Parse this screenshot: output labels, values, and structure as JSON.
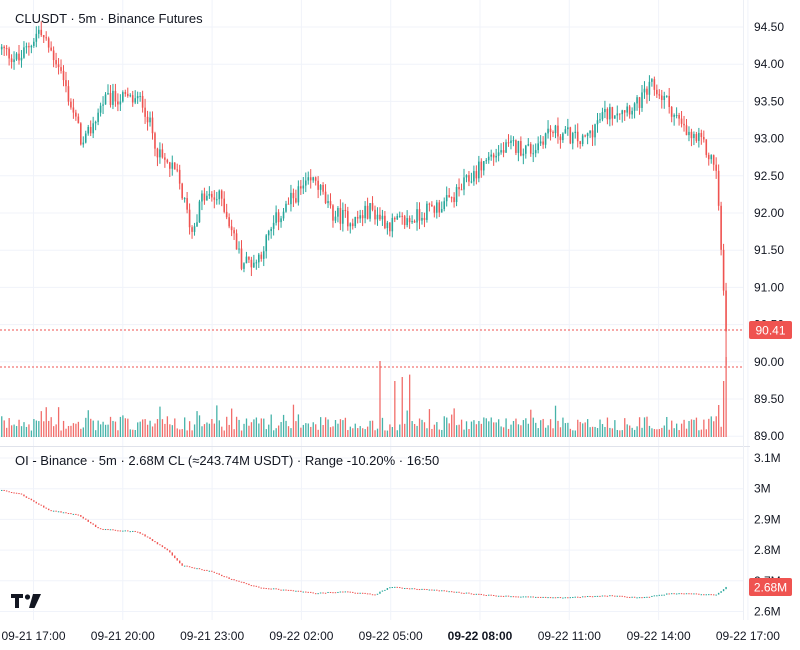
{
  "header": {
    "symbol_title": "CLUSDT · 5m · Binance Futures"
  },
  "oi_panel": {
    "title": "OI - Binance · 5m · 2.68M CL (≈243.74M USDT) · Range -10.20% · 16:50",
    "current_label": "2.68M",
    "y_ticks": [
      "3.1M",
      "3M",
      "2.9M",
      "2.8M",
      "2.7M",
      "2.6M"
    ]
  },
  "price_panel": {
    "current_price_label": "90.41",
    "y_ticks": [
      "94.50",
      "94.00",
      "93.50",
      "93.00",
      "92.50",
      "92.00",
      "91.50",
      "91.00",
      "90.50",
      "90.00",
      "89.50",
      "89.00"
    ]
  },
  "x_axis": {
    "labels": [
      "09-21 17:00",
      "09-21 20:00",
      "09-21 23:00",
      "09-22 02:00",
      "09-22 05:00",
      "09-22 08:00",
      "09-22 11:00",
      "09-22 14:00",
      "09-22 17:00"
    ],
    "bold_index": 5
  },
  "logo": {
    "icon": "tradingview-logo-icon"
  },
  "colors": {
    "up": "#26a69a",
    "down": "#ef5350",
    "grid": "#f0f3fa",
    "price_tag": "#ef5350",
    "oi_tag": "#ef5350"
  },
  "chart_data": {
    "type": "candlestick",
    "title": "CLUSDT · 5m · Binance Futures",
    "ylim": [
      88.9,
      94.7
    ],
    "price_path": [
      [
        "09-21 16:25",
        94.2
      ],
      [
        "09-21 17:00",
        94.05
      ],
      [
        "09-21 17:40",
        94.45
      ],
      [
        "09-21 18:20",
        94.0
      ],
      [
        "09-21 19:10",
        92.9
      ],
      [
        "09-21 19:50",
        93.5
      ],
      [
        "09-21 20:20",
        93.55
      ],
      [
        "09-21 21:10",
        93.5
      ],
      [
        "09-21 21:45",
        92.75
      ],
      [
        "09-21 22:20",
        92.5
      ],
      [
        "09-21 22:50",
        91.75
      ],
      [
        "09-21 23:10",
        92.2
      ],
      [
        "09-21 23:50",
        92.2
      ],
      [
        "09-22 00:30",
        91.35
      ],
      [
        "09-22 01:00",
        91.35
      ],
      [
        "09-22 01:40",
        91.9
      ],
      [
        "09-22 02:20",
        92.25
      ],
      [
        "09-22 03:00",
        92.45
      ],
      [
        "09-22 03:30",
        92.0
      ],
      [
        "09-22 04:20",
        91.9
      ],
      [
        "09-22 04:50",
        92.05
      ],
      [
        "09-22 05:30",
        91.85
      ],
      [
        "09-22 06:10",
        91.9
      ],
      [
        "09-22 06:50",
        92.05
      ],
      [
        "09-22 07:30",
        92.15
      ],
      [
        "09-22 08:10",
        92.45
      ],
      [
        "09-22 08:50",
        92.75
      ],
      [
        "09-22 09:40",
        92.9
      ],
      [
        "09-22 10:20",
        92.85
      ],
      [
        "09-22 10:50",
        93.1
      ],
      [
        "09-22 11:30",
        93.05
      ],
      [
        "09-22 12:00",
        92.95
      ],
      [
        "09-22 12:40",
        93.3
      ],
      [
        "09-22 13:10",
        93.4
      ],
      [
        "09-22 13:50",
        93.45
      ],
      [
        "09-22 14:20",
        93.7
      ],
      [
        "09-22 14:50",
        93.5
      ],
      [
        "09-22 15:30",
        93.05
      ],
      [
        "09-22 16:00",
        92.95
      ],
      [
        "09-22 16:30",
        92.6
      ],
      [
        "09-22 16:50",
        90.41
      ]
    ],
    "volume_ylim": [
      0,
      1
    ],
    "volume_spikes": [
      [
        "09-22 05:10",
        0.95
      ],
      [
        "09-22 05:40",
        0.7
      ],
      [
        "09-22 05:55",
        0.75
      ],
      [
        "09-22 06:10",
        0.78
      ],
      [
        "09-22 16:35",
        0.4
      ],
      [
        "09-22 16:45",
        0.7
      ],
      [
        "09-22 16:50",
        1.0
      ]
    ],
    "open_interest": {
      "ylim": [
        2.58,
        3.12
      ],
      "path": [
        [
          "09-21 16:25",
          2.995
        ],
        [
          "09-21 17:00",
          2.985
        ],
        [
          "09-21 18:00",
          2.93
        ],
        [
          "09-21 19:00",
          2.915
        ],
        [
          "09-21 19:40",
          2.87
        ],
        [
          "09-21 21:00",
          2.86
        ],
        [
          "09-21 22:00",
          2.8
        ],
        [
          "09-21 22:30",
          2.75
        ],
        [
          "09-21 23:30",
          2.73
        ],
        [
          "09-22 00:00",
          2.71
        ],
        [
          "09-22 01:00",
          2.68
        ],
        [
          "09-22 02:00",
          2.67
        ],
        [
          "09-22 03:00",
          2.66
        ],
        [
          "09-22 04:00",
          2.665
        ],
        [
          "09-22 05:00",
          2.655
        ],
        [
          "09-22 05:30",
          2.68
        ],
        [
          "09-22 07:00",
          2.67
        ],
        [
          "09-22 09:00",
          2.652
        ],
        [
          "09-22 11:00",
          2.645
        ],
        [
          "09-22 13:00",
          2.652
        ],
        [
          "09-22 14:00",
          2.645
        ],
        [
          "09-22 15:00",
          2.66
        ],
        [
          "09-22 16:30",
          2.655
        ],
        [
          "09-22 16:50",
          2.68
        ]
      ]
    }
  }
}
